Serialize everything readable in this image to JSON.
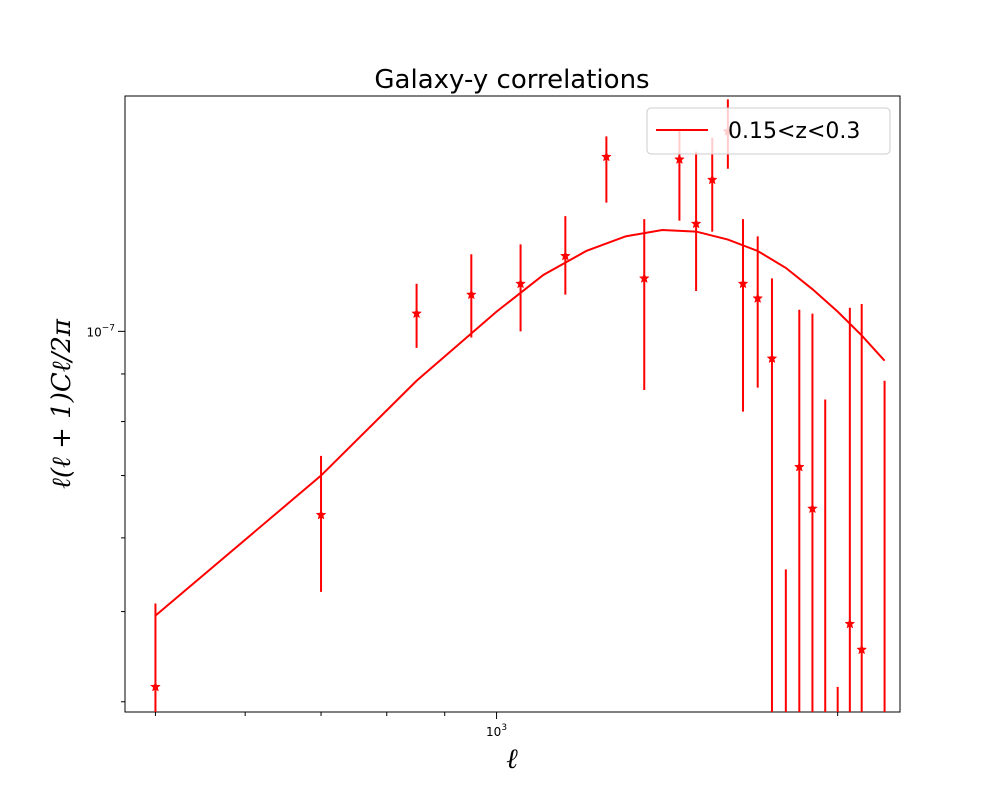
{
  "chart_data": {
    "type": "line",
    "title": "Galaxy-y correlations",
    "xlabel": "ℓ",
    "ylabel": "ℓ(ℓ + 1)Cℓ/2π",
    "x_scale": "log",
    "y_scale": "log",
    "xlim": [
      470,
      2270
    ],
    "ylim": [
      3.9e-08,
      1.79e-07
    ],
    "x_tick_labels": [
      {
        "value": 1000,
        "base": "10",
        "exp": "3"
      }
    ],
    "y_tick_labels": [
      {
        "value": 1e-07,
        "base": "10",
        "exp": "−7"
      }
    ],
    "legend": {
      "position": "top-right",
      "entries": [
        "0.15<z<0.3"
      ]
    },
    "grid": false,
    "series": [
      {
        "name": "0.15<z<0.3",
        "type": "line",
        "color": "#ff0000",
        "x": [
          500,
          700,
          850,
          1000,
          1100,
          1200,
          1300,
          1400,
          1500,
          1600,
          1700,
          1800,
          1900,
          2000,
          2100,
          2200
        ],
        "y": [
          4.95e-08,
          7e-08,
          8.85e-08,
          1.05e-07,
          1.15e-07,
          1.22e-07,
          1.265e-07,
          1.285e-07,
          1.28e-07,
          1.255e-07,
          1.22e-07,
          1.17e-07,
          1.11e-07,
          1.05e-07,
          9.9e-08,
          9.3e-08
        ]
      },
      {
        "name": "",
        "type": "errorbar",
        "marker": "star",
        "color": "#ff0000",
        "points": [
          {
            "x": 500,
            "y": 4.15e-08,
            "ylo": 3.9e-08,
            "yhi": 5.1e-08
          },
          {
            "x": 700,
            "y": 6.35e-08,
            "ylo": 5.25e-08,
            "yhi": 7.35e-08
          },
          {
            "x": 850,
            "y": 1.045e-07,
            "ylo": 9.6e-08,
            "yhi": 1.125e-07
          },
          {
            "x": 950,
            "y": 1.095e-07,
            "ylo": 9.85e-08,
            "yhi": 1.21e-07
          },
          {
            "x": 1050,
            "y": 1.125e-07,
            "ylo": 1e-07,
            "yhi": 1.24e-07
          },
          {
            "x": 1150,
            "y": 1.205e-07,
            "ylo": 1.095e-07,
            "yhi": 1.33e-07
          },
          {
            "x": 1250,
            "y": 1.54e-07,
            "ylo": 1.375e-07,
            "yhi": 1.62e-07
          },
          {
            "x": 1350,
            "y": 1.14e-07,
            "ylo": 8.65e-08,
            "yhi": 1.32e-07
          },
          {
            "x": 1450,
            "y": 1.53e-07,
            "ylo": 1.315e-07,
            "yhi": 1.65e-07
          },
          {
            "x": 1500,
            "y": 1.305e-07,
            "ylo": 1.105e-07,
            "yhi": 1.56e-07
          },
          {
            "x": 1550,
            "y": 1.455e-07,
            "ylo": 1.28e-07,
            "yhi": 1.615e-07
          },
          {
            "x": 1600,
            "y": 1.64e-07,
            "ylo": 1.495e-07,
            "yhi": 1.775e-07
          },
          {
            "x": 1650,
            "y": 1.125e-07,
            "ylo": 8.2e-08,
            "yhi": 1.32e-07
          },
          {
            "x": 1700,
            "y": 1.085e-07,
            "ylo": 8.7e-08,
            "yhi": 1.265e-07
          },
          {
            "x": 1750,
            "y": 9.35e-08,
            "ylo": 3.9e-08,
            "yhi": 1.14e-07
          },
          {
            "x": 1800,
            "y": null,
            "ylo": 3.9e-08,
            "yhi": 5.55e-08
          },
          {
            "x": 1850,
            "y": 7.15e-08,
            "ylo": 3.9e-08,
            "yhi": 1.055e-07
          },
          {
            "x": 1900,
            "y": 6.45e-08,
            "ylo": 3.9e-08,
            "yhi": 1.045e-07
          },
          {
            "x": 1950,
            "y": null,
            "ylo": 3.9e-08,
            "yhi": 8.45e-08
          },
          {
            "x": 2000,
            "y": null,
            "ylo": 3.9e-08,
            "yhi": 4.15e-08
          },
          {
            "x": 2050,
            "y": 4.85e-08,
            "ylo": 3.9e-08,
            "yhi": 1.06e-07
          },
          {
            "x": 2100,
            "y": 4.55e-08,
            "ylo": 3.9e-08,
            "yhi": 1.07e-07
          },
          {
            "x": 2200,
            "y": null,
            "ylo": 3.9e-08,
            "yhi": 8.85e-08
          }
        ]
      }
    ]
  }
}
